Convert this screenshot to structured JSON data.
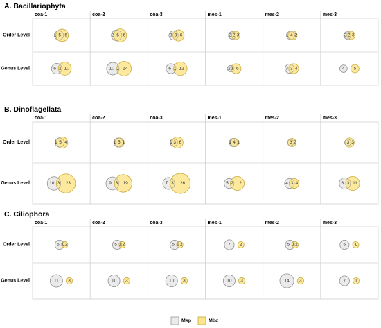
{
  "chart_data": {
    "type": "venn-grid",
    "legend": [
      {
        "label": "Msp",
        "color": "#ebebeb",
        "stroke": "#9a9a9a"
      },
      {
        "label": "Mbc",
        "color": "#fbe58d",
        "stroke": "#c9a93c"
      }
    ],
    "columns": [
      "coa-1",
      "coa-2",
      "coa-3",
      "mes-1",
      "mes-2",
      "mes-3"
    ],
    "rows": [
      "Order Level",
      "Genus Level"
    ],
    "sections": [
      {
        "title": "A. Bacillariophyta",
        "cells": [
          [
            {
              "msp": 1,
              "shared": 5,
              "mbc": 6
            },
            {
              "msp": 2,
              "shared": 6,
              "mbc": 6
            },
            {
              "msp": 3,
              "shared": 3,
              "mbc": 6
            },
            {
              "msp": 2,
              "shared": 2,
              "mbc": 3
            },
            {
              "msp": 1,
              "shared": 4,
              "mbc": 2
            },
            {
              "msp": 2,
              "shared": 2,
              "mbc": 3
            }
          ],
          [
            {
              "msp": 6,
              "shared": 2,
              "mbc": 10
            },
            {
              "msp": 10,
              "shared": 1,
              "mbc": 14
            },
            {
              "msp": 6,
              "shared": 1,
              "mbc": 12
            },
            {
              "msp": 2,
              "shared": 1,
              "mbc": 6
            },
            {
              "msp": 3,
              "shared": 3,
              "mbc": 4
            },
            {
              "msp": 4,
              "shared": 0,
              "mbc": 5
            }
          ]
        ]
      },
      {
        "title": "B. Dinoflagellata",
        "cells": [
          [
            {
              "msp": 1,
              "shared": 5,
              "mbc": 4
            },
            {
              "msp": 1,
              "shared": 5,
              "mbc": 1
            },
            {
              "msp": 1,
              "shared": 3,
              "mbc": 6
            },
            {
              "msp": 1,
              "shared": 4,
              "mbc": 1
            },
            {
              "msp": 0,
              "shared": 3,
              "mbc": 2
            },
            {
              "msp": 0,
              "shared": 3,
              "mbc": 3
            }
          ],
          [
            {
              "msp": 10,
              "shared": 3,
              "mbc": 23
            },
            {
              "msp": 9,
              "shared": 3,
              "mbc": 19
            },
            {
              "msp": 7,
              "shared": 3,
              "mbc": 26
            },
            {
              "msp": 5,
              "shared": 2,
              "mbc": 12
            },
            {
              "msp": 4,
              "shared": 3,
              "mbc": 4
            },
            {
              "msp": 6,
              "shared": 3,
              "mbc": 11
            }
          ]
        ]
      },
      {
        "title": "C. Ciliophora",
        "cells": [
          [
            {
              "msp": 5,
              "shared": 1,
              "mbc": 2
            },
            {
              "msp": 5,
              "shared": 1,
              "mbc": 2
            },
            {
              "msp": 5,
              "shared": 1,
              "mbc": 2
            },
            {
              "msp": 7,
              "shared": 0,
              "mbc": 2
            },
            {
              "msp": 5,
              "shared": 1,
              "mbc": 2
            },
            {
              "msp": 6,
              "shared": 0,
              "mbc": 1
            }
          ],
          [
            {
              "msp": 11,
              "shared": 0,
              "mbc": 3
            },
            {
              "msp": 10,
              "shared": 0,
              "mbc": 3
            },
            {
              "msp": 10,
              "shared": 0,
              "mbc": 3
            },
            {
              "msp": 10,
              "shared": 0,
              "mbc": 3
            },
            {
              "msp": 14,
              "shared": 0,
              "mbc": 3
            },
            {
              "msp": 7,
              "shared": 0,
              "mbc": 1
            }
          ]
        ]
      }
    ]
  }
}
